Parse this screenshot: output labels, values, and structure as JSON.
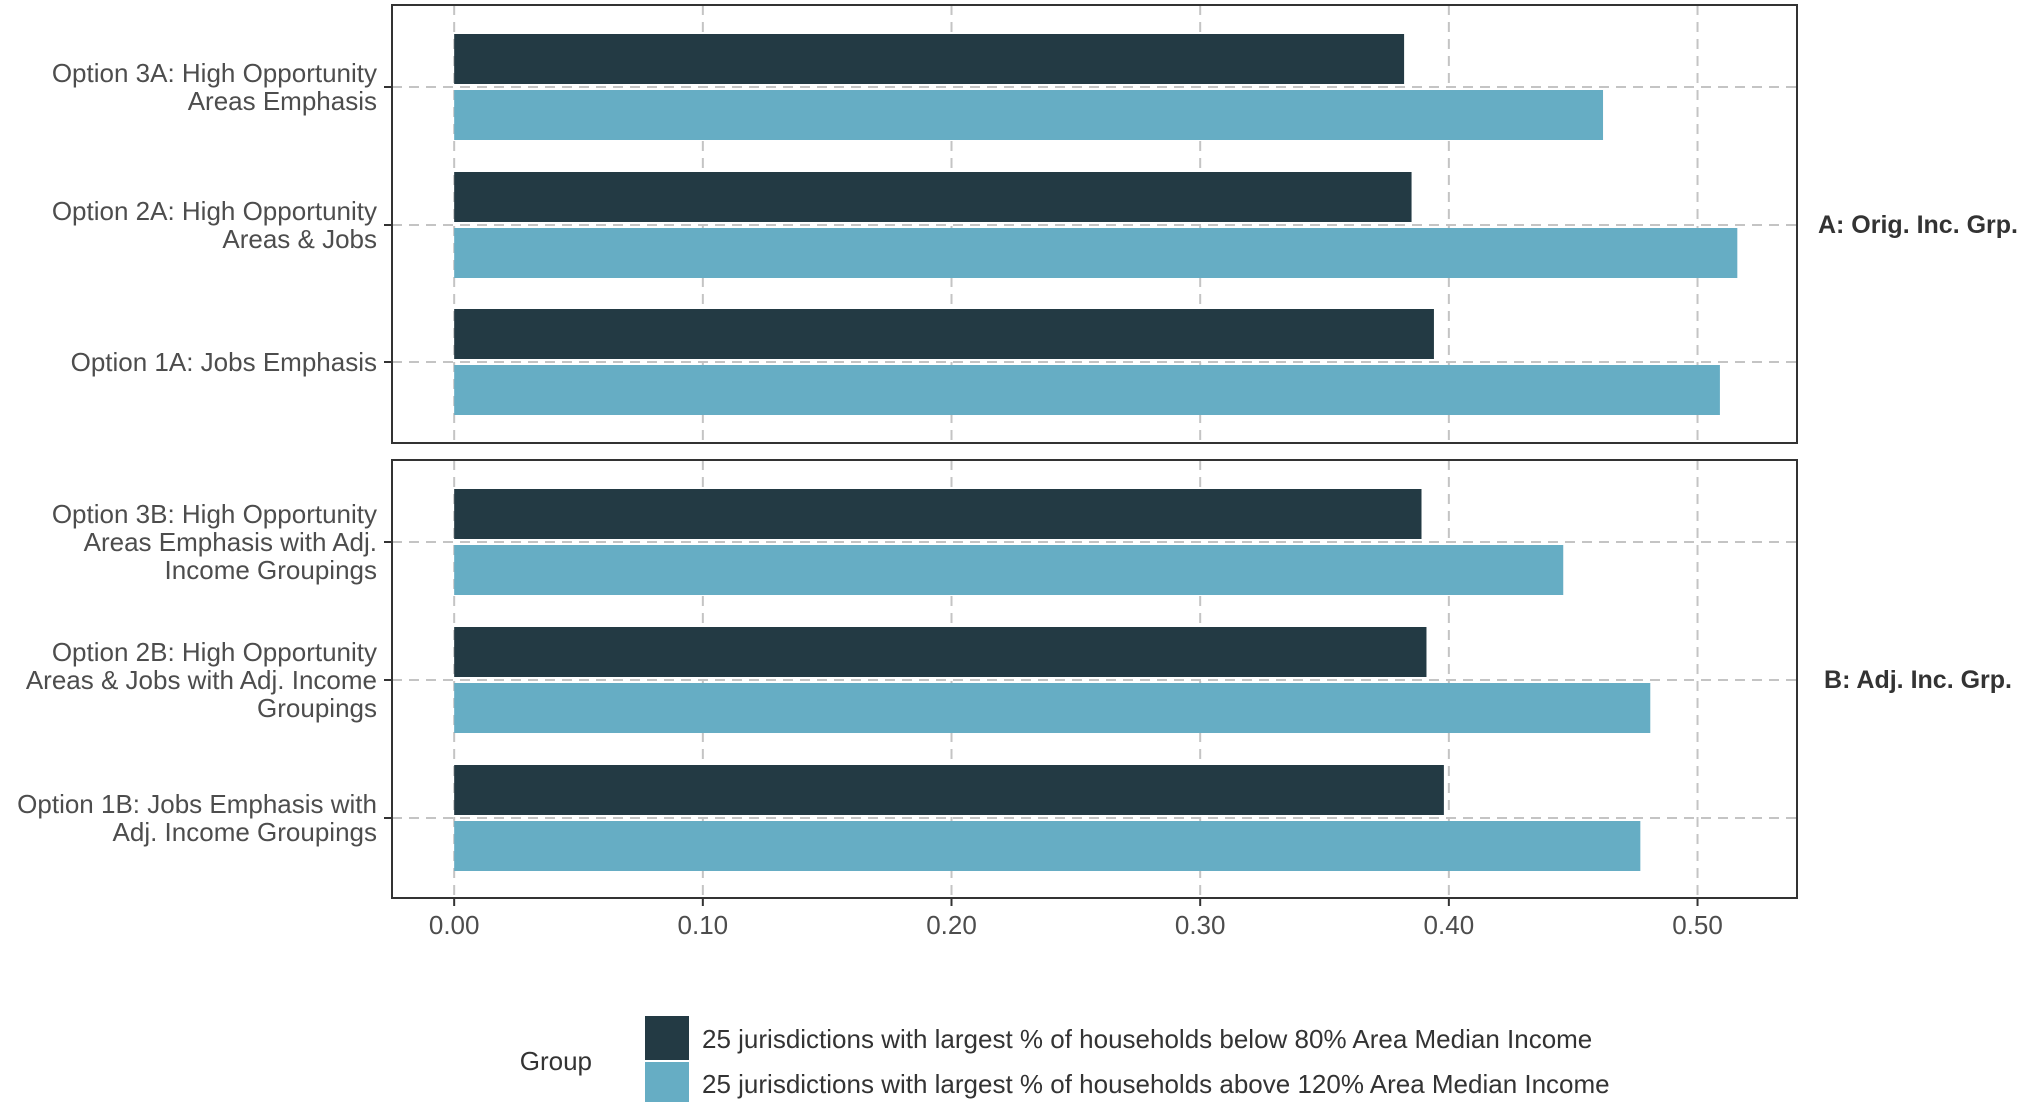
{
  "chart_data": {
    "type": "bar",
    "orientation": "horizontal",
    "x_ticks": [
      0.0,
      0.1,
      0.2,
      0.3,
      0.4,
      0.5
    ],
    "x_tick_labels": [
      "0.00",
      "0.10",
      "0.20",
      "0.30",
      "0.40",
      "0.50"
    ],
    "xlim": [
      -0.025,
      0.54
    ],
    "xlabel": "",
    "ylabel": "",
    "grid": true,
    "series": [
      {
        "name": "25 jurisdictions with largest % of households below 80% Area Median Income",
        "color": "#233a44"
      },
      {
        "name": "25 jurisdictions with largest % of households above 120% Area Median Income",
        "color": "#66adc4"
      }
    ],
    "panels": [
      {
        "label": "A: Orig. Inc. Grp.",
        "categories": [
          {
            "lines": [
              "Option 3A: High Opportunity",
              "Areas Emphasis"
            ],
            "values": [
              0.382,
              0.462
            ]
          },
          {
            "lines": [
              "Option 2A: High Opportunity",
              "Areas & Jobs"
            ],
            "values": [
              0.385,
              0.516
            ]
          },
          {
            "lines": [
              "Option 1A: Jobs Emphasis"
            ],
            "values": [
              0.394,
              0.509
            ]
          }
        ]
      },
      {
        "label": "B: Adj. Inc. Grp.",
        "categories": [
          {
            "lines": [
              "Option 3B: High Opportunity",
              "Areas Emphasis with Adj.",
              "Income Groupings"
            ],
            "values": [
              0.389,
              0.446
            ]
          },
          {
            "lines": [
              "Option 2B: High Opportunity",
              "Areas & Jobs with Adj. Income",
              "Groupings"
            ],
            "values": [
              0.391,
              0.481
            ]
          },
          {
            "lines": [
              "Option 1B: Jobs Emphasis with",
              "Adj. Income Groupings"
            ],
            "values": [
              0.398,
              0.477
            ]
          }
        ]
      }
    ],
    "legend": {
      "title": "Group",
      "position": "bottom"
    }
  }
}
